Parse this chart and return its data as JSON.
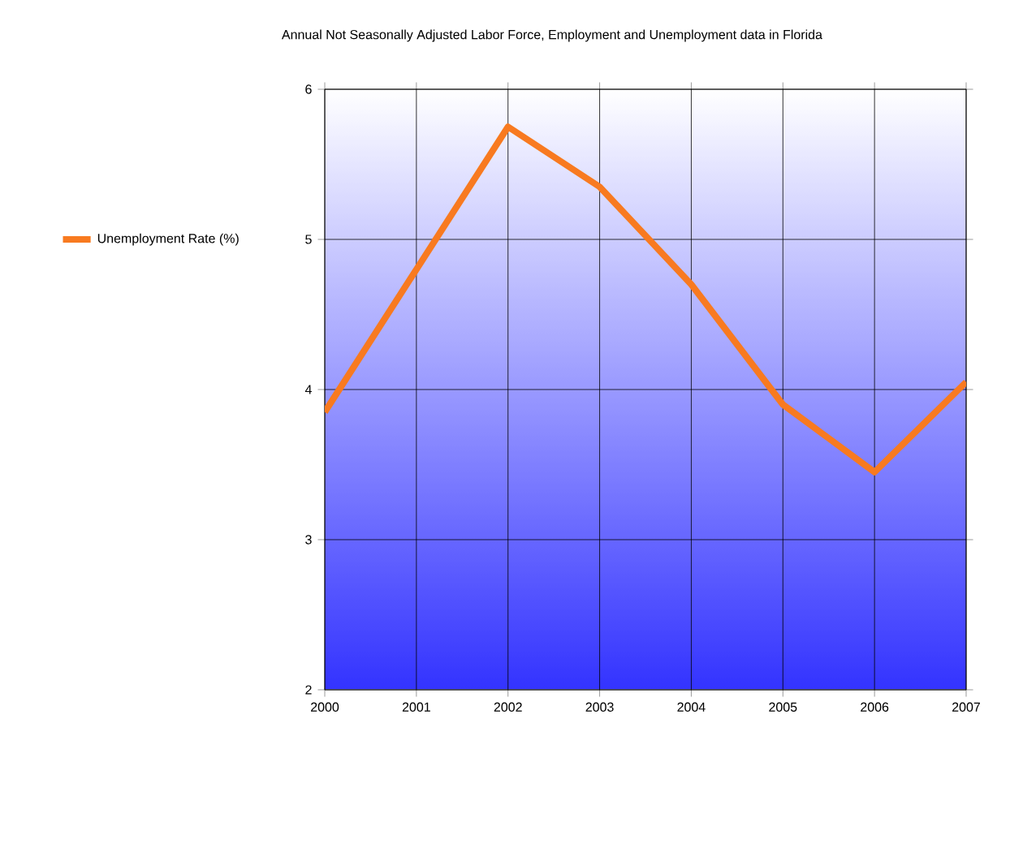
{
  "chart_data": {
    "type": "line",
    "title": "Annual Not Seasonally Adjusted Labor Force, Employment and Unemployment data in Florida",
    "categories": [
      "2000",
      "2001",
      "2002",
      "2003",
      "2004",
      "2005",
      "2006",
      "2007"
    ],
    "series": [
      {
        "name": "Unemployment Rate (%)",
        "color": "#f87a20",
        "values": [
          3.85,
          4.8,
          5.75,
          5.35,
          4.7,
          3.9,
          3.45,
          4.05
        ]
      }
    ],
    "ylim": [
      2,
      6
    ],
    "yticks": [
      2,
      3,
      4,
      5,
      6
    ],
    "grid": true,
    "legend": "left",
    "marker": "none",
    "line_style": "solid"
  }
}
